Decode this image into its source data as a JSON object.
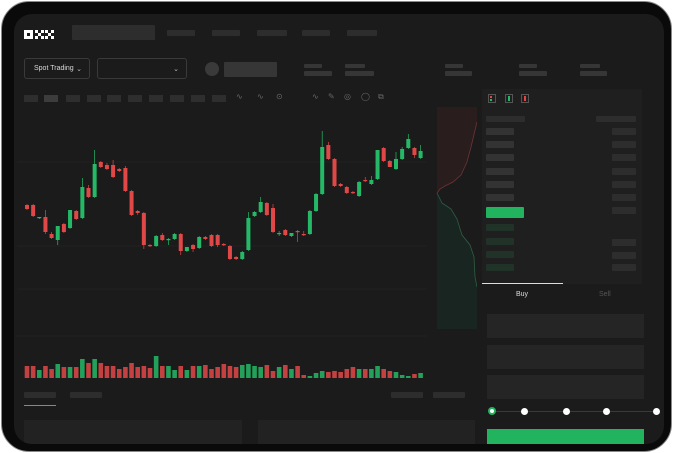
{
  "header": {
    "logo": "OKX"
  },
  "market": {
    "mode_select": "Spot Trading"
  },
  "order_form": {
    "tabs": [
      {
        "label": "Buy",
        "active": true
      },
      {
        "label": "Sell",
        "active": false
      }
    ],
    "leverage_slider_level": 0,
    "submit_color": "#22b35e"
  },
  "colors": {
    "up": "#25b866",
    "down": "#e04848",
    "background": "#1b1b1b"
  },
  "chart_data": {
    "type": "candlestick",
    "title": "",
    "xlabel": "",
    "ylabel": "",
    "grid": true,
    "ohlc": [
      [
        97,
        98,
        92,
        93
      ],
      [
        97,
        98,
        85,
        86
      ],
      [
        84,
        85,
        83,
        85
      ],
      [
        85,
        92,
        68,
        70
      ],
      [
        68,
        70,
        63,
        64
      ],
      [
        62,
        76,
        57,
        76
      ],
      [
        78,
        79,
        69,
        70
      ],
      [
        74,
        92,
        73,
        92
      ],
      [
        91,
        92,
        82,
        83
      ],
      [
        84,
        124,
        83,
        115
      ],
      [
        114,
        117,
        104,
        105
      ],
      [
        105,
        152,
        104,
        138
      ],
      [
        140,
        141,
        134,
        135
      ],
      [
        137,
        139,
        132,
        133
      ],
      [
        137,
        142,
        124,
        125
      ],
      [
        133,
        134,
        130,
        131
      ],
      [
        134,
        136,
        110,
        111
      ],
      [
        111,
        112,
        86,
        87
      ],
      [
        91,
        92,
        87,
        89
      ],
      [
        89,
        90,
        53,
        57
      ],
      [
        57,
        58,
        55,
        56
      ],
      [
        56,
        67,
        55,
        66
      ],
      [
        67,
        69,
        61,
        62
      ],
      [
        62,
        64,
        57,
        63
      ],
      [
        63,
        69,
        62,
        68
      ],
      [
        68,
        69,
        47,
        51
      ],
      [
        51,
        55,
        50,
        55
      ],
      [
        57,
        58,
        50,
        53
      ],
      [
        54,
        66,
        53,
        65
      ],
      [
        65,
        66,
        62,
        63
      ],
      [
        67,
        68,
        55,
        56
      ],
      [
        67,
        68,
        55,
        57
      ],
      [
        58,
        59,
        56,
        57
      ],
      [
        56,
        57,
        42,
        43
      ],
      [
        45,
        46,
        42,
        43
      ],
      [
        43,
        51,
        42,
        50
      ],
      [
        52,
        90,
        51,
        84
      ],
      [
        86,
        91,
        85,
        90
      ],
      [
        90,
        105,
        89,
        100
      ],
      [
        99,
        100,
        86,
        87
      ],
      [
        94,
        98,
        69,
        70
      ],
      [
        68,
        71,
        66,
        69
      ],
      [
        72,
        73,
        66,
        67
      ],
      [
        66,
        69,
        65,
        69
      ],
      [
        71,
        72,
        60,
        70
      ],
      [
        68,
        71,
        66,
        67
      ],
      [
        68,
        92,
        67,
        91
      ],
      [
        91,
        109,
        90,
        108
      ],
      [
        108,
        171,
        107,
        155
      ],
      [
        157,
        160,
        142,
        143
      ],
      [
        143,
        144,
        115,
        116
      ],
      [
        118,
        119,
        115,
        116
      ],
      [
        115,
        116,
        108,
        109
      ],
      [
        110,
        111,
        108,
        109
      ],
      [
        106,
        121,
        105,
        120
      ],
      [
        122,
        125,
        120,
        121
      ],
      [
        118,
        126,
        117,
        122
      ],
      [
        123,
        152,
        122,
        152
      ],
      [
        154,
        155,
        140,
        141
      ],
      [
        141,
        142,
        135,
        135
      ],
      [
        133,
        150,
        132,
        143
      ],
      [
        143,
        155,
        142,
        153
      ],
      [
        154,
        168,
        153,
        163
      ],
      [
        154,
        155,
        144,
        147
      ],
      [
        144,
        157,
        143,
        151
      ]
    ],
    "volume": [
      12,
      12,
      8,
      12,
      9,
      14,
      11,
      11,
      11,
      19,
      15,
      19,
      15,
      12,
      12,
      9,
      11,
      15,
      11,
      12,
      10,
      22,
      12,
      12,
      8,
      12,
      8,
      12,
      12,
      13,
      9,
      11,
      14,
      12,
      11,
      13,
      14,
      12,
      11,
      13,
      7,
      11,
      13,
      9,
      12,
      3,
      2,
      5,
      7,
      6,
      7,
      6,
      9,
      11,
      9,
      9,
      9,
      12,
      9,
      7,
      6,
      3,
      2,
      4,
      5
    ]
  }
}
